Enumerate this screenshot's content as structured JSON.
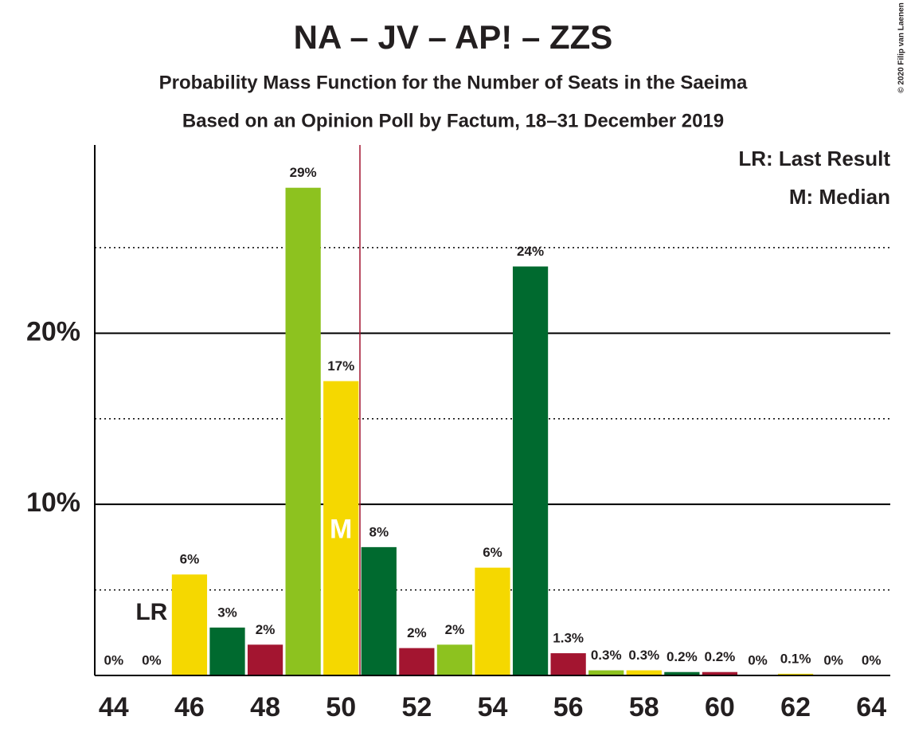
{
  "chart_data": {
    "type": "bar",
    "title": "NA – JV – AP! – ZZS",
    "subtitle": "Probability Mass Function for the Number of Seats in the Saeima",
    "subtitle2": "Based on an Opinion Poll by Factum, 18–31 December 2019",
    "copyright": "© 2020 Filip van Laenen",
    "x": [
      44,
      45,
      46,
      47,
      48,
      49,
      50,
      51,
      52,
      53,
      54,
      55,
      56,
      57,
      58,
      59,
      60,
      61,
      62,
      63,
      64
    ],
    "values": [
      0,
      0,
      5.9,
      2.8,
      1.8,
      28.5,
      17.2,
      7.5,
      1.6,
      1.8,
      6.3,
      23.9,
      1.3,
      0.3,
      0.3,
      0.2,
      0.2,
      0,
      0.1,
      0,
      0
    ],
    "value_labels": [
      "0%",
      "0%",
      "6%",
      "3%",
      "2%",
      "29%",
      "17%",
      "8%",
      "2%",
      "2%",
      "6%",
      "24%",
      "1.3%",
      "0.3%",
      "0.3%",
      "0.2%",
      "0.2%",
      "0%",
      "0.1%",
      "0%",
      "0%"
    ],
    "colors": [
      "#a31530",
      "#8dc21f",
      "#f5d800",
      "#006a2f",
      "#a31530",
      "#8dc21f",
      "#f5d800",
      "#006a2f",
      "#a31530",
      "#8dc21f",
      "#f5d800",
      "#006a2f",
      "#a31530",
      "#8dc21f",
      "#f5d800",
      "#006a2f",
      "#a31530",
      "#8dc21f",
      "#f5d800",
      "#006a2f",
      "#a31530"
    ],
    "xlim": [
      43.5,
      64.5
    ],
    "xticks": [
      44,
      46,
      48,
      50,
      52,
      54,
      56,
      58,
      60,
      62,
      64
    ],
    "ylim": [
      0,
      31
    ],
    "yticks": [
      {
        "value": 10,
        "label": "10%"
      },
      {
        "value": 20,
        "label": "20%"
      }
    ],
    "minor_yticks": [
      5,
      15,
      25
    ],
    "last_result": 45,
    "last_result_label": "LR",
    "median": 50,
    "median_label": "M",
    "legend": [
      "LR: Last Result",
      "M: Median"
    ]
  }
}
